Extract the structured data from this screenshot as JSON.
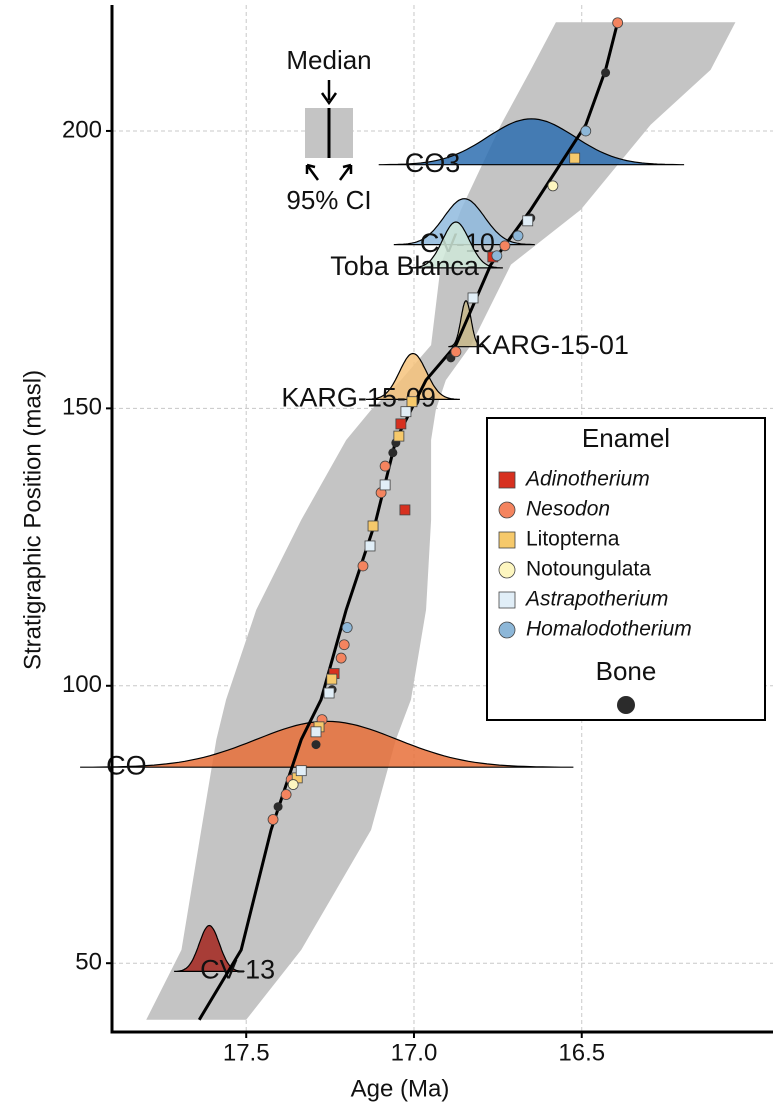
{
  "chart_data": {
    "type": "age-model",
    "x_label": "Age (Ma)",
    "y_label": "Stratigraphic Position (masl)",
    "xlim": [
      17.9,
      15.93
    ],
    "ylim": [
      37.6,
      222.7
    ],
    "xticks": [
      17.5,
      {
        "value": 17,
        "label": "17.0"
      },
      16.5
    ],
    "yticks": [
      50,
      100,
      150,
      200
    ],
    "grid": true,
    "median_line": {
      "age": [
        17.64,
        17.515,
        17.426,
        17.336,
        17.277,
        17.202,
        17.113,
        17.054,
        17.009,
        16.964,
        16.875,
        16.771,
        16.652,
        16.488,
        16.429,
        16.393
      ],
      "position": [
        39.8,
        52.4,
        74.0,
        90.3,
        97.5,
        113.7,
        129.9,
        144.3,
        149.7,
        155.1,
        161.4,
        175.9,
        185.8,
        201.1,
        211.0,
        219.6
      ],
      "color": "#000000"
    },
    "ci_band": {
      "position": [
        39.8,
        52.4,
        74.0,
        90.3,
        97.5,
        113.7,
        129.9,
        144.3,
        149.7,
        155.1,
        161.4,
        175.9,
        185.8,
        201.1,
        211.0,
        219.6
      ],
      "older": [
        17.798,
        17.693,
        17.634,
        17.589,
        17.56,
        17.47,
        17.336,
        17.202,
        17.128,
        17.039,
        16.949,
        16.92,
        16.86,
        16.741,
        16.652,
        16.577
      ],
      "younger": [
        17.5,
        17.336,
        17.128,
        17.054,
        17.009,
        16.964,
        16.949,
        16.949,
        16.935,
        16.905,
        16.83,
        16.711,
        16.503,
        16.295,
        16.116,
        16.042
      ],
      "color": "#c4c4c4"
    },
    "ash_layers": [
      {
        "label": "CO3",
        "position": 193.9,
        "age": 16.65,
        "sd": 0.13,
        "color": "#2e6fb0",
        "label_side": "right"
      },
      {
        "label": "CV-10",
        "position": 179.5,
        "age": 16.85,
        "sd": 0.06,
        "color": "#8fbade",
        "label_side": "right"
      },
      {
        "label": "Toba Blanca",
        "position": 175.3,
        "age": 16.875,
        "sd": 0.04,
        "color": "#cfe7d8",
        "label_side": "left"
      },
      {
        "label": "KARG-15-01",
        "position": 161.1,
        "age": 16.845,
        "sd": 0.015,
        "color": "#c8b98a",
        "label_side": "right"
      },
      {
        "label": "KARG-15-09",
        "position": 151.6,
        "age": 17.003,
        "sd": 0.04,
        "color": "#f6c37c",
        "label_side": "left"
      },
      {
        "label": "CO",
        "position": 85.3,
        "age": 17.26,
        "sd": 0.21,
        "color": "#e8703a",
        "label_side": "right"
      },
      {
        "label": "CV-13",
        "position": 48.5,
        "age": 17.61,
        "sd": 0.03,
        "color": "#a3261f",
        "label_side": "right"
      }
    ],
    "legend_title": "Enamel",
    "series": [
      {
        "name": "Adinotherium",
        "italic": true,
        "shape": "square",
        "color": "#d7301f",
        "x": [
          17.039,
          17.027,
          16.765,
          17.238
        ],
        "y": [
          147.2,
          131.7,
          177.3,
          102.2
        ]
      },
      {
        "name": "Nesodon",
        "italic": true,
        "shape": "circle",
        "color": "#f4845f",
        "x": [
          16.393,
          17.086,
          17.098,
          17.152,
          17.208,
          17.217,
          17.274,
          17.366,
          17.381,
          17.42,
          16.729,
          16.875
        ],
        "y": [
          219.5,
          139.6,
          134.8,
          121.6,
          107.4,
          105.0,
          93.9,
          83.1,
          80.4,
          75.9,
          179.3,
          160.2
        ]
      },
      {
        "name": "Litopterna",
        "italic": false,
        "shape": "square",
        "color": "#f6c96b",
        "x": [
          16.521,
          17.006,
          17.045,
          17.122,
          17.245,
          17.283,
          17.348
        ],
        "y": [
          195.1,
          151.2,
          145.0,
          128.8,
          101.2,
          92.6,
          83.4
        ]
      },
      {
        "name": "Notoungulata",
        "italic": false,
        "shape": "circle",
        "color": "#fdf6c0",
        "x": [
          16.586,
          17.36
        ],
        "y": [
          190.1,
          82.2
        ]
      },
      {
        "name": "Astrapotherium",
        "italic": true,
        "shape": "square",
        "color": "#e1eef7",
        "x": [
          16.661,
          16.824,
          17.024,
          17.086,
          17.131,
          17.253,
          17.292,
          17.336
        ],
        "y": [
          183.8,
          169.9,
          149.4,
          136.2,
          125.2,
          98.7,
          91.7,
          84.7
        ]
      },
      {
        "name": "Homalodotherium",
        "italic": true,
        "shape": "circle",
        "color": "#8db7d8",
        "x": [
          16.488,
          16.69,
          16.753,
          17.199
        ],
        "y": [
          200.0,
          181.1,
          177.5,
          110.5
        ]
      }
    ],
    "bone": {
      "name": "Bone",
      "color": "#2b2b2b",
      "x": [
        16.429,
        16.652,
        16.89,
        17.054,
        17.063,
        17.244,
        17.292,
        17.405
      ],
      "y": [
        210.5,
        184.3,
        159.1,
        143.8,
        142.0,
        99.3,
        89.4,
        78.2
      ]
    },
    "inset": {
      "median_label": "Median",
      "ci_label": "95% CI"
    }
  }
}
